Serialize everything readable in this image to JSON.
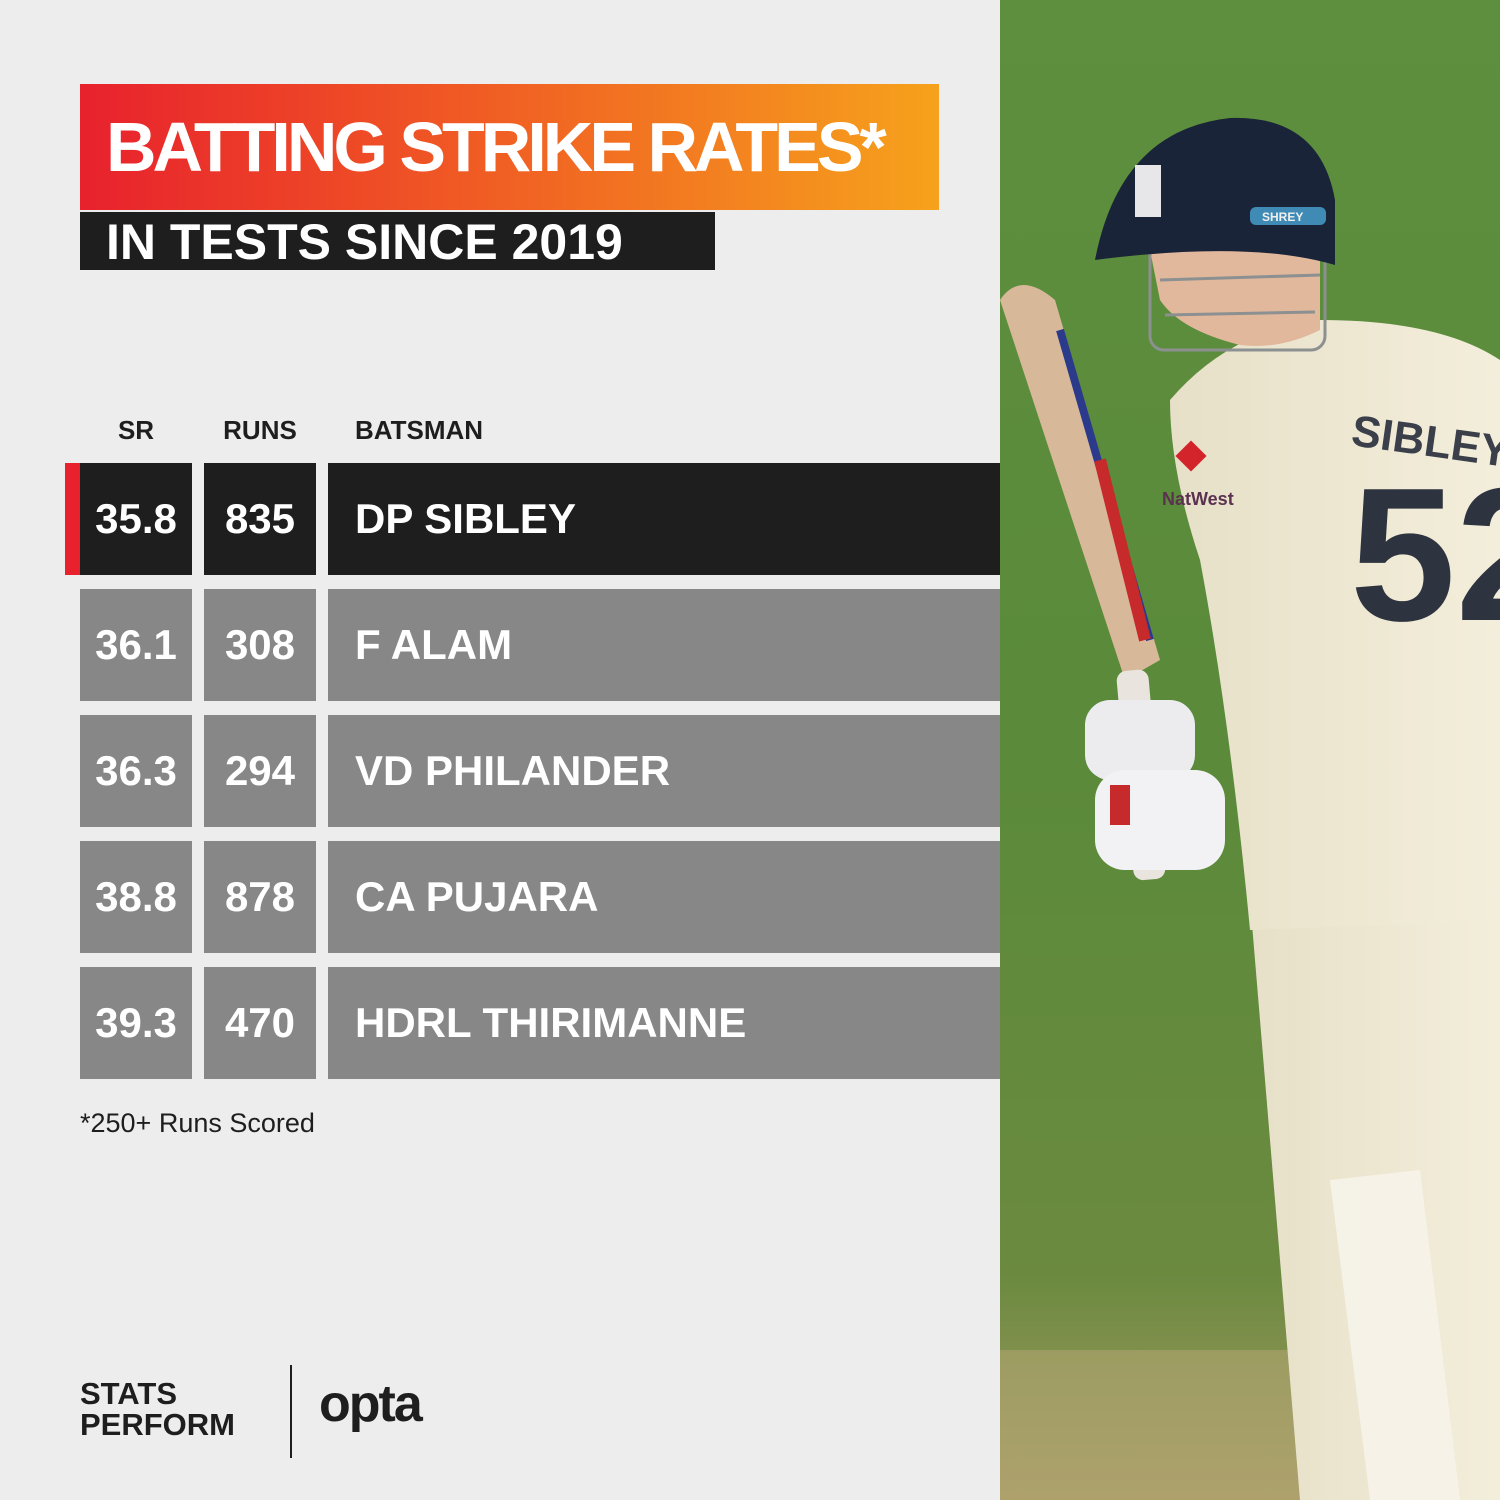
{
  "title": "BATTING STRIKE RATES*",
  "subtitle": "IN TESTS SINCE 2019",
  "colors": {
    "accent_red": "#e8212d",
    "accent_orange": "#f6a21c",
    "highlight_row": "#1e1e1e",
    "row": "#878787",
    "background": "#ededed"
  },
  "chart_data": {
    "type": "table",
    "title": "BATTING STRIKE RATES*",
    "subtitle": "IN TESTS SINCE 2019",
    "columns": [
      "SR",
      "RUNS",
      "BATSMAN"
    ],
    "rows": [
      {
        "sr": "35.8",
        "runs": "835",
        "batsman": "DP SIBLEY",
        "highlighted": true
      },
      {
        "sr": "36.1",
        "runs": "308",
        "batsman": "F ALAM",
        "highlighted": false
      },
      {
        "sr": "36.3",
        "runs": "294",
        "batsman": "VD PHILANDER",
        "highlighted": false
      },
      {
        "sr": "38.8",
        "runs": "878",
        "batsman": "CA PUJARA",
        "highlighted": false
      },
      {
        "sr": "39.3",
        "runs": "470",
        "batsman": "HDRL THIRIMANNE",
        "highlighted": false
      }
    ],
    "footnote": "*250+ Runs Scored"
  },
  "branding": {
    "stats_line1": "STATS",
    "stats_line2": "PERFORM",
    "opta": "opta"
  },
  "photo": {
    "icons": [
      "player-photo",
      "batsman-helmet",
      "cricket-bat"
    ],
    "helmet_text": "SHREY",
    "shirt_name": "SIBLEY",
    "shirt_number": "52",
    "sponsor": "NatWest"
  }
}
